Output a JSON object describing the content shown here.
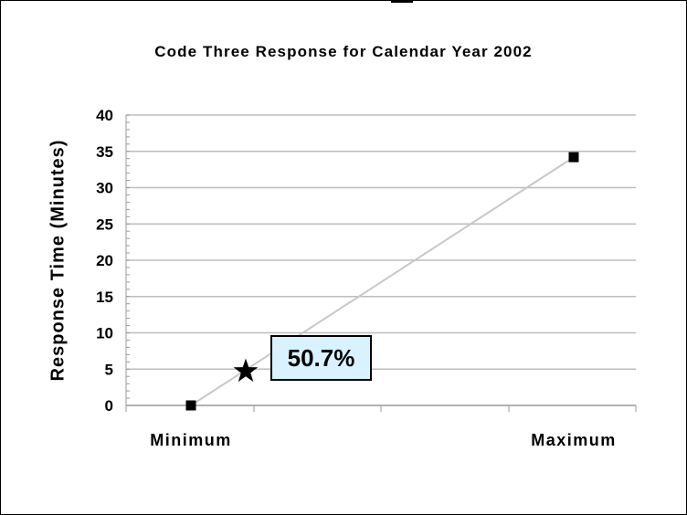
{
  "chart_data": {
    "type": "line",
    "title": "Code Three Response for Calendar Year 2002",
    "xlabel": "",
    "ylabel": "Response Time (Minutes)",
    "categories": [
      "Minimum",
      "Maximum"
    ],
    "x_tick_labels": [
      "Minimum",
      "Maximum"
    ],
    "y_ticks": [
      0,
      5,
      10,
      15,
      20,
      25,
      30,
      35,
      40
    ],
    "ylim": [
      0,
      40
    ],
    "grid": true,
    "series": [
      {
        "values": [
          0,
          34.2
        ],
        "color": "#c8c8c8",
        "marker": "square"
      }
    ],
    "highlight_point": {
      "x": "between Minimum and Maximum",
      "y": 4.7,
      "marker": "star"
    },
    "annotation": {
      "text": "50.7%",
      "background": "#d9f2ff"
    }
  }
}
